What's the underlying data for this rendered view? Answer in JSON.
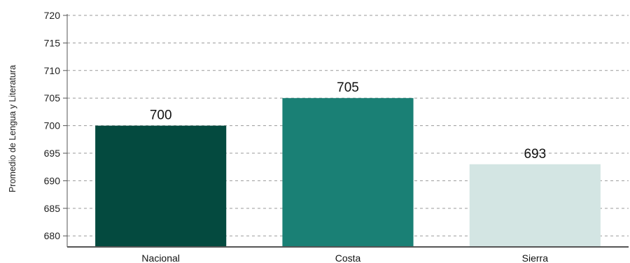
{
  "chart_data": {
    "type": "bar",
    "title": "",
    "xlabel": "",
    "ylabel": "Promedio de Lengua y Literatura",
    "categories": [
      "Nacional",
      "Costa",
      "Sierra"
    ],
    "values": [
      700,
      705,
      693
    ],
    "data_labels": [
      "700",
      "705",
      "693"
    ],
    "ylim": [
      678,
      720
    ],
    "y_ticks": [
      680,
      685,
      690,
      695,
      700,
      705,
      710,
      715,
      720
    ],
    "bar_colors": [
      "#044a3f",
      "#1a8075",
      "#d3e5e3"
    ],
    "grid": "horizontal dashed",
    "legend": "none"
  }
}
